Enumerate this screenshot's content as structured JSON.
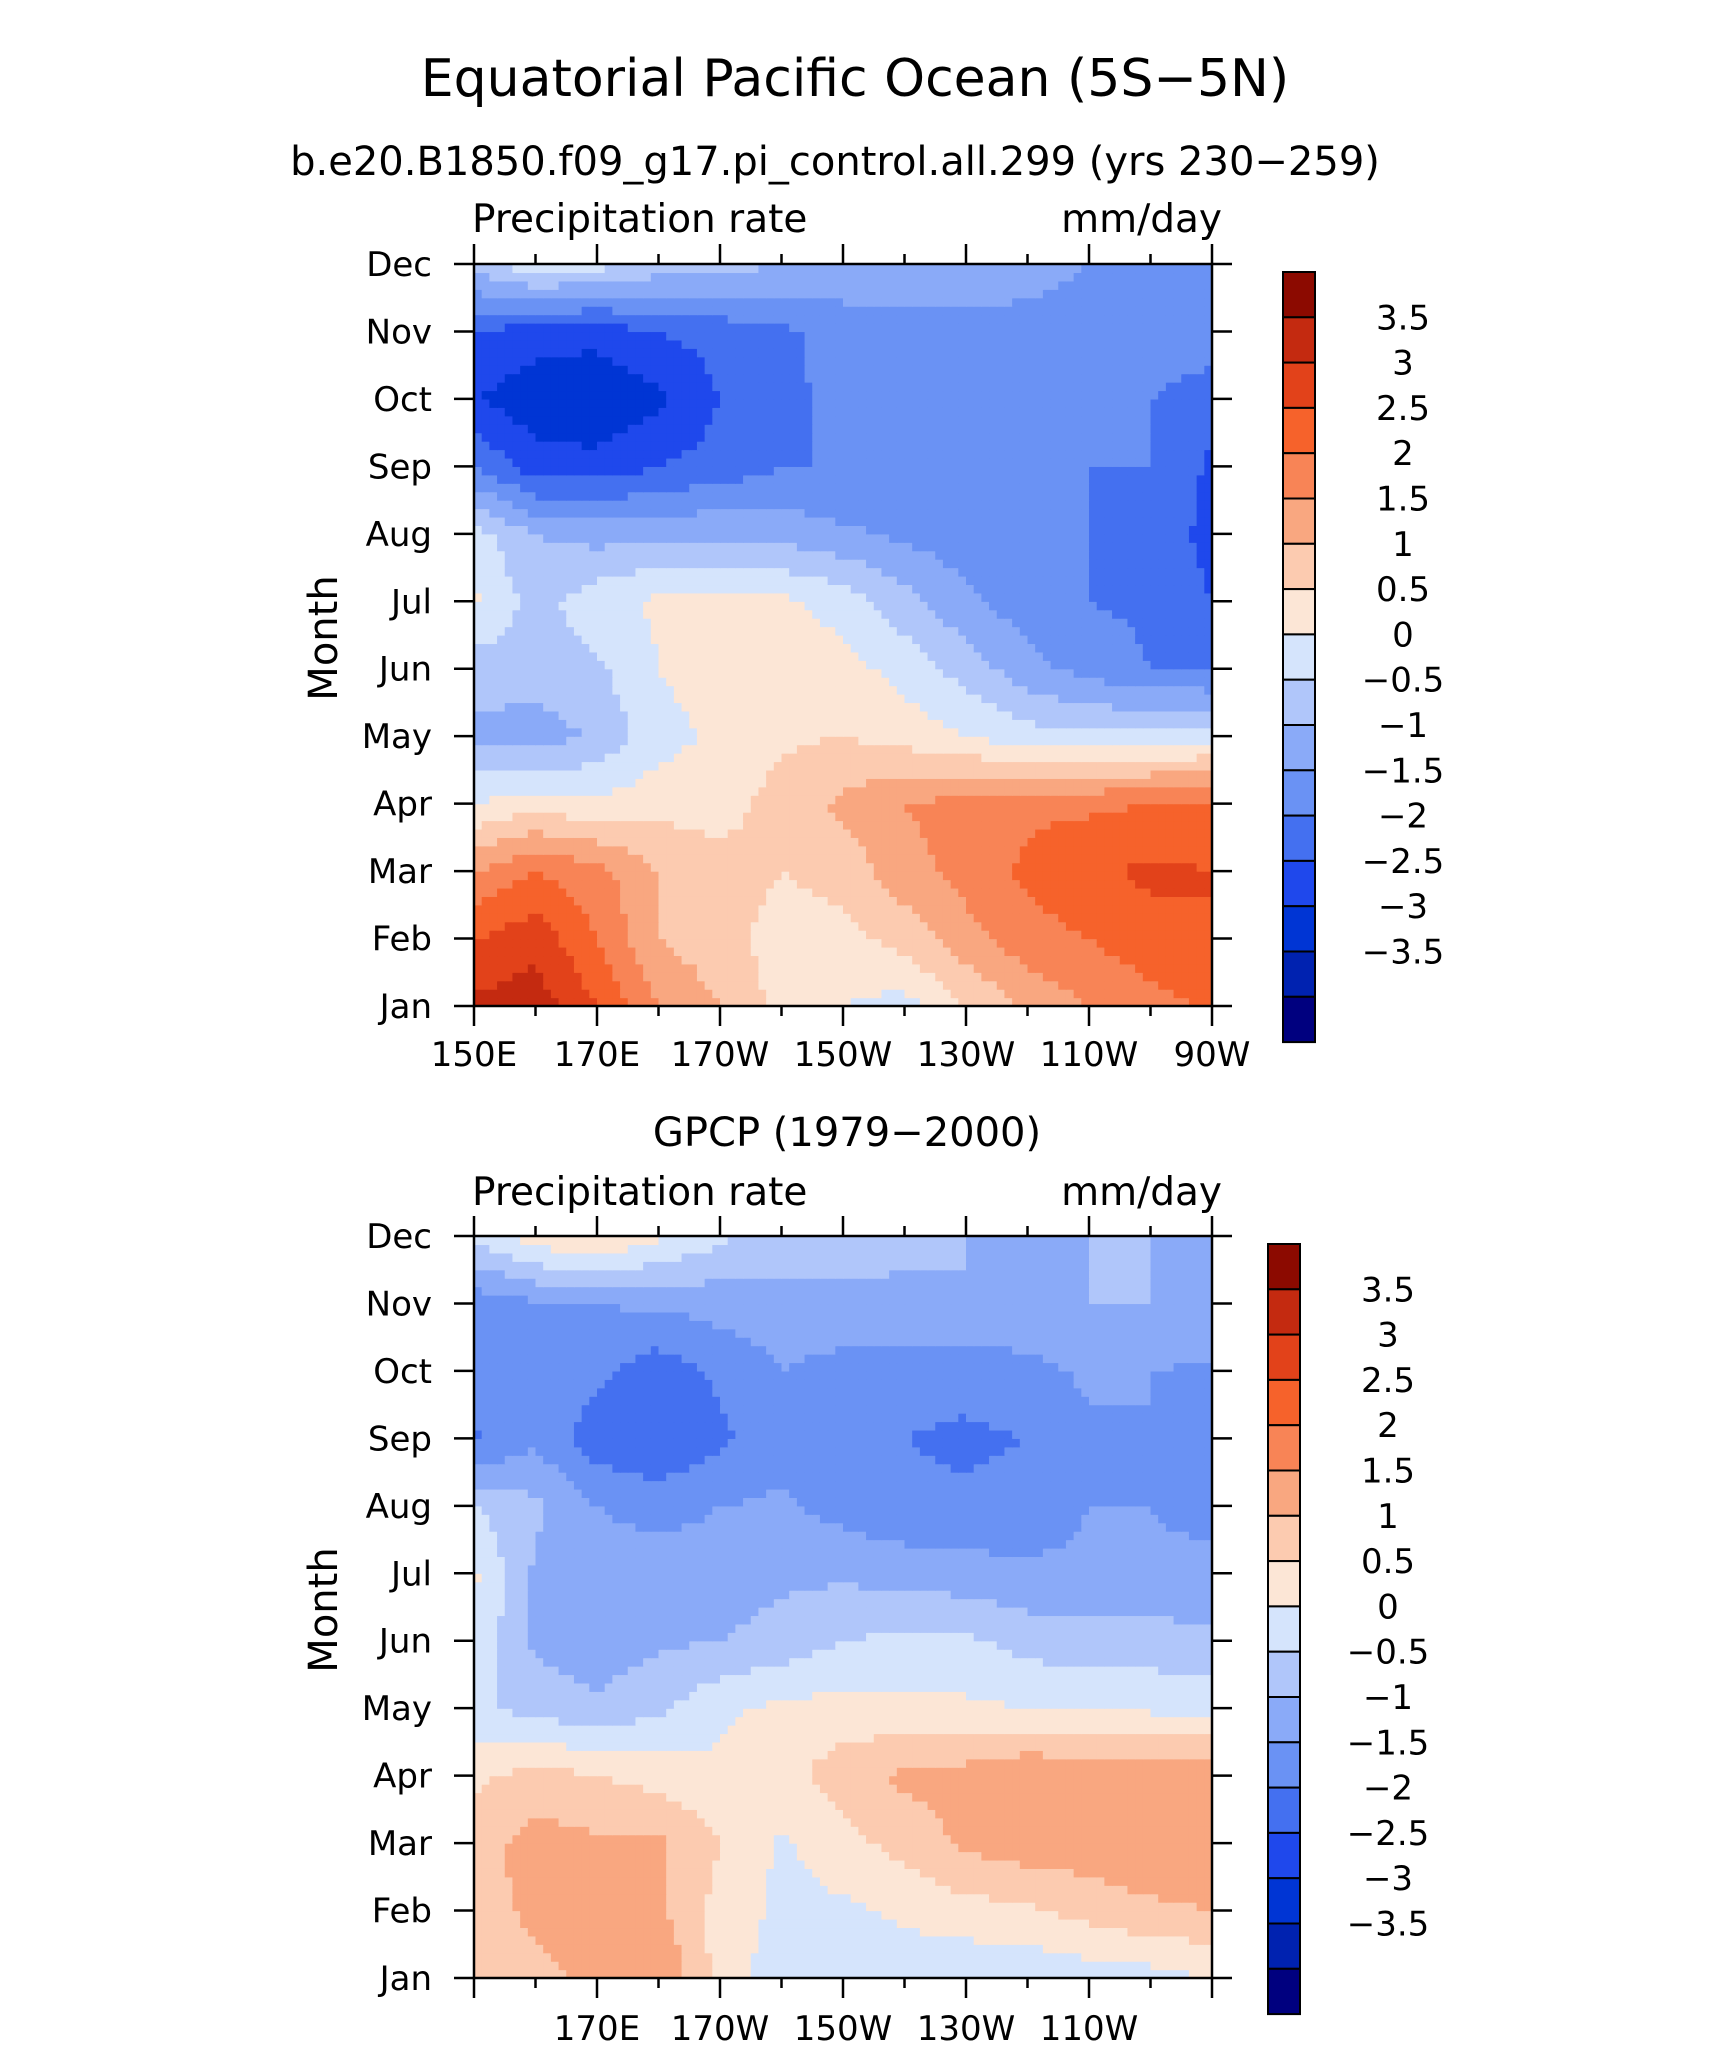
{
  "title": "Equatorial Pacific Ocean (5S−5N)",
  "colors": {
    "levels": [
      "#00007f",
      "#0022b0",
      "#0035d4",
      "#1f48ec",
      "#4470f0",
      "#6a92f4",
      "#8aaaf8",
      "#b0c6fa",
      "#d5e4fc",
      "#fce6d6",
      "#fccbb0",
      "#f9a780",
      "#f88456",
      "#f6622b",
      "#e2421a",
      "#c42a10",
      "#8c0a00"
    ]
  },
  "chart_data": [
    {
      "type": "heatmap",
      "title": "b.e20.B1850.f09_g17.pi_control.all.299 (yrs 230−259)",
      "left_label": "Precipitation rate",
      "right_label": "mm/day",
      "ylabel": "Month",
      "y_ticks": [
        "Jan",
        "Feb",
        "Mar",
        "Apr",
        "May",
        "Jun",
        "Jul",
        "Aug",
        "Sep",
        "Oct",
        "Nov",
        "Dec"
      ],
      "x_ticks": [
        "150E",
        "170E",
        "170W",
        "150W",
        "130W",
        "110W",
        "90W"
      ],
      "x": [
        150,
        160,
        170,
        180,
        190,
        200,
        210,
        220,
        230,
        240,
        250,
        260,
        270
      ],
      "colorbar_labels": [
        "3.5",
        "3",
        "2.5",
        "2",
        "1.5",
        "1",
        "0.5",
        "0",
        "−0.5",
        "−1",
        "−1.5",
        "−2",
        "−2.5",
        "−3",
        "−3.5"
      ],
      "z": [
        [
          3.6,
          3.8,
          3.0,
          2.0,
          1.5,
          0.8,
          0.5,
          0.3,
          1.0,
          1.6,
          2.0,
          2.3,
          2.6
        ],
        [
          3.0,
          3.3,
          2.5,
          1.5,
          1.2,
          0.8,
          0.8,
          1.2,
          1.8,
          2.3,
          2.5,
          2.8,
          3.0
        ],
        [
          2.0,
          2.5,
          2.2,
          1.5,
          1.2,
          1.0,
          1.2,
          1.8,
          2.2,
          2.6,
          2.9,
          3.1,
          3.0
        ],
        [
          0.5,
          0.8,
          0.6,
          0.8,
          0.8,
          1.2,
          1.6,
          2.0,
          2.2,
          2.4,
          2.4,
          2.5,
          2.6
        ],
        [
          -0.6,
          -0.8,
          -0.4,
          0.3,
          0.6,
          0.9,
          1.0,
          0.8,
          0.5,
          0.2,
          0.1,
          0.2,
          0.3
        ],
        [
          -0.3,
          -0.2,
          -0.1,
          0.5,
          0.8,
          0.8,
          0.7,
          0.3,
          -0.2,
          -0.8,
          -1.2,
          -1.5,
          -1.6
        ],
        [
          0.6,
          -0.2,
          0.3,
          0.6,
          0.7,
          0.6,
          0.3,
          -0.3,
          -0.9,
          -1.3,
          -1.5,
          -1.6,
          -2.0
        ],
        [
          0.2,
          -0.5,
          -0.7,
          -0.6,
          -0.6,
          -0.7,
          -0.9,
          -1.1,
          -1.3,
          -1.5,
          -1.5,
          -1.6,
          -2.2
        ],
        [
          -1.5,
          -2.3,
          -2.3,
          -2.0,
          -1.8,
          -1.5,
          -1.5,
          -1.5,
          -1.5,
          -1.5,
          -1.5,
          -1.5,
          -2.1
        ],
        [
          -2.5,
          -2.8,
          -3.0,
          -2.6,
          -2.0,
          -1.6,
          -1.4,
          -1.4,
          -1.4,
          -1.4,
          -1.4,
          -1.5,
          -1.8
        ],
        [
          -2.0,
          -2.3,
          -2.3,
          -2.0,
          -1.8,
          -1.6,
          -1.3,
          -1.2,
          -1.1,
          -1.1,
          -1.1,
          -1.1,
          -1.2
        ],
        [
          -0.3,
          0.4,
          0.2,
          -0.2,
          -0.3,
          -0.5,
          -0.6,
          -0.7,
          -0.8,
          -0.9,
          -1.0,
          -1.0,
          -1.0
        ]
      ]
    },
    {
      "type": "heatmap",
      "title": "GPCP (1979−2000)",
      "left_label": "Precipitation rate",
      "right_label": "mm/day",
      "ylabel": "Month",
      "y_ticks": [
        "Jan",
        "Feb",
        "Mar",
        "Apr",
        "May",
        "Jun",
        "Jul",
        "Aug",
        "Sep",
        "Oct",
        "Nov",
        "Dec"
      ],
      "x_ticks": [
        "170E",
        "170W",
        "150W",
        "130W",
        "110W"
      ],
      "x": [
        150,
        160,
        170,
        180,
        190,
        200,
        210,
        220,
        230,
        240,
        250,
        260,
        270
      ],
      "colorbar_labels": [
        "3.5",
        "3",
        "2.5",
        "2",
        "1.5",
        "1",
        "0.5",
        "0",
        "−0.5",
        "−1",
        "−1.5",
        "−2",
        "−2.5",
        "−3",
        "−3.5"
      ],
      "z": [
        [
          1.2,
          1.4,
          1.6,
          2.0,
          0.8,
          0.2,
          0.2,
          0.2,
          0.1,
          0.1,
          0.2,
          0.3,
          0.5
        ],
        [
          1.3,
          1.6,
          1.7,
          1.6,
          0.8,
          0.4,
          0.4,
          0.6,
          0.8,
          0.9,
          1.2,
          1.4,
          1.5
        ],
        [
          1.3,
          1.7,
          1.6,
          1.6,
          1.0,
          0.4,
          0.8,
          1.2,
          1.6,
          1.8,
          1.8,
          1.9,
          1.8
        ],
        [
          0.9,
          1.2,
          1.0,
          0.8,
          0.6,
          0.8,
          1.3,
          1.6,
          1.7,
          2.0,
          1.8,
          2.0,
          1.9
        ],
        [
          0.1,
          -0.2,
          -0.4,
          -0.1,
          0.4,
          0.6,
          0.7,
          0.6,
          0.6,
          0.5,
          0.5,
          0.4,
          0.3
        ],
        [
          0.4,
          -0.6,
          -0.8,
          -0.6,
          -0.5,
          -0.3,
          0.0,
          0.1,
          0.1,
          -0.2,
          -0.3,
          -0.3,
          -0.4
        ],
        [
          0.6,
          -0.6,
          -0.8,
          -0.7,
          -0.8,
          -0.6,
          -0.6,
          -0.7,
          -0.8,
          -0.9,
          -0.9,
          -0.9,
          -0.8
        ],
        [
          0.0,
          -0.4,
          -1.0,
          -1.2,
          -1.0,
          -0.9,
          -1.2,
          -1.4,
          -1.4,
          -1.3,
          -1.0,
          -1.0,
          -1.2
        ],
        [
          -1.6,
          -1.1,
          -1.8,
          -2.0,
          -1.6,
          -1.2,
          -1.4,
          -1.5,
          -1.6,
          -1.5,
          -1.1,
          -1.0,
          -1.4
        ],
        [
          -1.2,
          -1.0,
          -1.4,
          -1.8,
          -1.4,
          -1.0,
          -1.2,
          -1.3,
          -1.3,
          -1.2,
          -0.9,
          -1.0,
          -1.1
        ],
        [
          -1.3,
          -1.1,
          -1.0,
          -0.9,
          -0.8,
          -0.7,
          -0.6,
          -0.6,
          -0.5,
          -0.5,
          -0.5,
          -0.5,
          -0.6
        ],
        [
          0.1,
          0.8,
          1.1,
          0.6,
          0.1,
          -0.2,
          -0.3,
          -0.4,
          -0.5,
          -0.6,
          -0.5,
          -0.5,
          -0.5
        ]
      ]
    }
  ]
}
